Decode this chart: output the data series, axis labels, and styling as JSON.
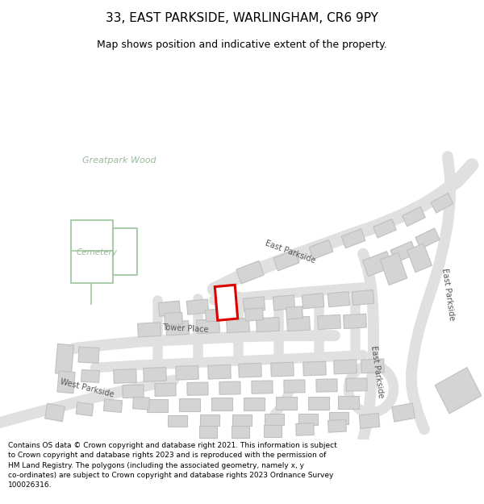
{
  "title": "33, EAST PARKSIDE, WARLINGHAM, CR6 9PY",
  "subtitle": "Map shows position and indicative extent of the property.",
  "footer": "Contains OS data © Crown copyright and database right 2021. This information is subject to Crown copyright and database rights 2023 and is reproduced with the permission of HM Land Registry. The polygons (including the associated geometry, namely x, y co-ordinates) are subject to Crown copyright and database rights 2023 Ordnance Survey 100026316.",
  "bg_green": "#6b9e6b",
  "bld_fill": "#d4d4d4",
  "bld_edge": "#c0c0c0",
  "road_fill": "#e8e8e8",
  "road_edge": "#cccccc",
  "red": "#dd0000",
  "cem_edge": "#aaccaa",
  "label_dark": "#555555",
  "label_green": "#9ab89a",
  "title_fs": 11,
  "sub_fs": 9,
  "footer_fs": 6.5
}
